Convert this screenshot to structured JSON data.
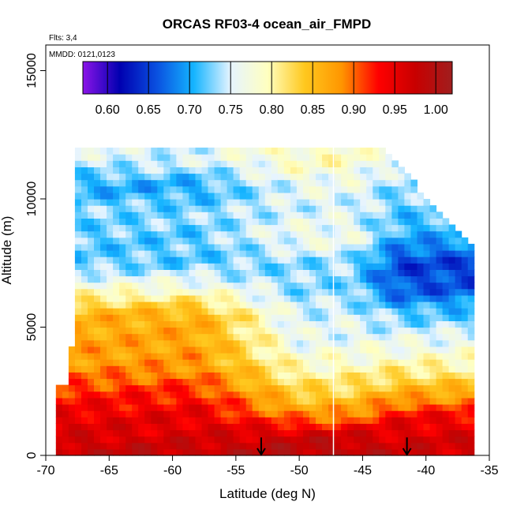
{
  "chart_data": {
    "type": "heatmap",
    "title": "ORCAS RF03-4 ocean_air_FMPD",
    "annotations": {
      "flights": "Flts: 3,4",
      "dates": "MMDD: 0121,0123"
    },
    "xlabel": "Latitude (deg N)",
    "ylabel": "Altitude (m)",
    "xlim": [
      -70,
      -35
    ],
    "ylim": [
      0,
      16000
    ],
    "x_ticks": [
      -70,
      -65,
      -60,
      -55,
      -50,
      -45,
      -40,
      -35
    ],
    "y_ticks": [
      0,
      5000,
      10000,
      15000
    ],
    "colorbar": {
      "min": 0.57,
      "max": 1.02,
      "ticks": [
        0.6,
        0.65,
        0.7,
        0.75,
        0.8,
        0.85,
        0.9,
        0.95,
        1.0
      ],
      "tick_labels": [
        "0.60",
        "0.65",
        "0.70",
        "0.75",
        "0.80",
        "0.85",
        "0.90",
        "0.95",
        "1.00"
      ],
      "colors": [
        "#8b14e8",
        "#0000b0",
        "#0a50e0",
        "#14b4ff",
        "#e6f4ff",
        "#ffffc0",
        "#ffc81e",
        "#ff9600",
        "#ff0000",
        "#c80000",
        "#a01e1e"
      ]
    },
    "vertical_line_lat": -47.3,
    "profile_markers_lat": [
      -53,
      -41.5
    ],
    "coverage": {
      "lat_min": -69.2,
      "lat_max": -36.5,
      "alt_top_south": 12000,
      "alt_top_north": 8000
    },
    "layers": [
      {
        "alt": 200,
        "s": 0.98,
        "m": 0.99,
        "n": 0.97
      },
      {
        "alt": 800,
        "s": 0.96,
        "m": 0.97,
        "n": 0.96
      },
      {
        "alt": 1500,
        "s": 0.95,
        "m": 0.89,
        "n": 0.94
      },
      {
        "alt": 2500,
        "s": 0.92,
        "m": 0.83,
        "n": 0.86
      },
      {
        "alt": 3500,
        "s": 0.88,
        "m": 0.79,
        "n": 0.8
      },
      {
        "alt": 4500,
        "s": 0.87,
        "m": 0.76,
        "n": 0.76
      },
      {
        "alt": 5500,
        "s": 0.86,
        "m": 0.75,
        "n": 0.72
      },
      {
        "alt": 6500,
        "s": 0.78,
        "m": 0.73,
        "n": 0.66
      },
      {
        "alt": 7500,
        "s": 0.72,
        "m": 0.73,
        "n": 0.65
      },
      {
        "alt": 8500,
        "s": 0.72,
        "m": 0.77,
        "n": 0.7
      },
      {
        "alt": 9500,
        "s": 0.73,
        "m": 0.75,
        "n": 0.72
      },
      {
        "alt": 10500,
        "s": 0.7,
        "m": 0.76,
        "n": 0.73
      },
      {
        "alt": 11500,
        "s": 0.75,
        "m": 0.79,
        "n": 0.75
      }
    ]
  }
}
